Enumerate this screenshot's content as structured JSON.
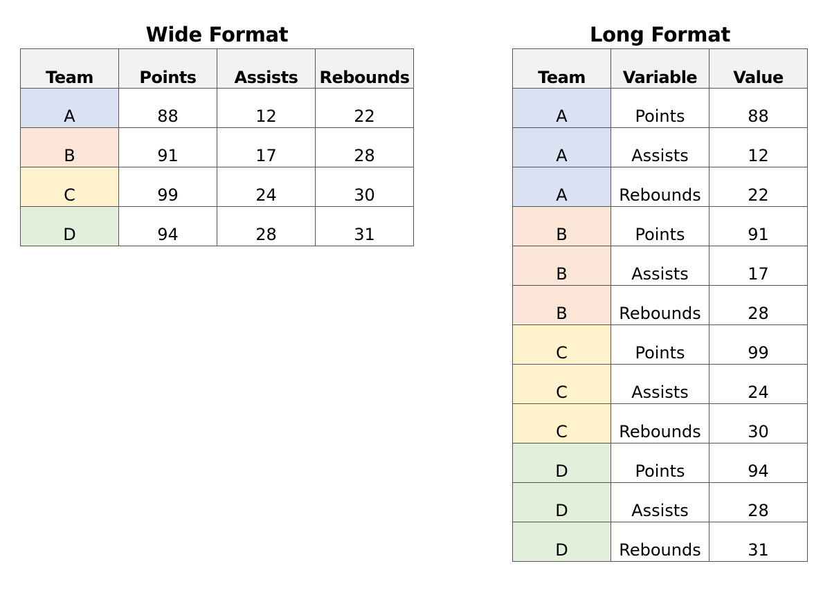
{
  "team_colors": {
    "A": "#d9e1f2",
    "B": "#fbe5d6",
    "C": "#fff2cc",
    "D": "#e2efda"
  },
  "wide": {
    "title": "Wide Format",
    "columns": [
      "Team",
      "Points",
      "Assists",
      "Rebounds"
    ],
    "rows": [
      [
        "A",
        "88",
        "12",
        "22"
      ],
      [
        "B",
        "91",
        "17",
        "28"
      ],
      [
        "C",
        "99",
        "24",
        "30"
      ],
      [
        "D",
        "94",
        "28",
        "31"
      ]
    ]
  },
  "long": {
    "title": "Long Format",
    "columns": [
      "Team",
      "Variable",
      "Value"
    ],
    "rows": [
      [
        "A",
        "Points",
        "88"
      ],
      [
        "A",
        "Assists",
        "12"
      ],
      [
        "A",
        "Rebounds",
        "22"
      ],
      [
        "B",
        "Points",
        "91"
      ],
      [
        "B",
        "Assists",
        "17"
      ],
      [
        "B",
        "Rebounds",
        "28"
      ],
      [
        "C",
        "Points",
        "99"
      ],
      [
        "C",
        "Assists",
        "24"
      ],
      [
        "C",
        "Rebounds",
        "30"
      ],
      [
        "D",
        "Points",
        "94"
      ],
      [
        "D",
        "Assists",
        "28"
      ],
      [
        "D",
        "Rebounds",
        "31"
      ]
    ]
  }
}
